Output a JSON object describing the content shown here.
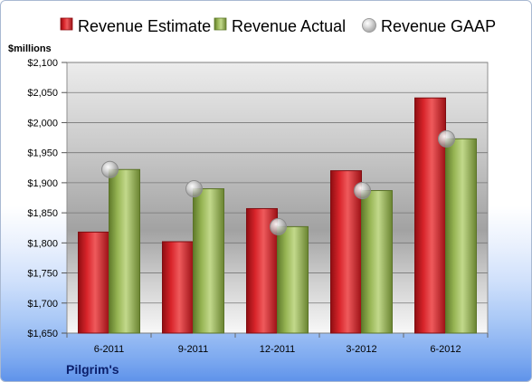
{
  "chart_data": {
    "type": "bar",
    "unit_label": "$millions",
    "company": "Pilgrim's",
    "categories": [
      "6-2011",
      "9-2011",
      "12-2011",
      "3-2012",
      "6-2012"
    ],
    "series": [
      {
        "name": "Revenue Estimate",
        "kind": "bar",
        "color": "#d11f24",
        "values": [
          1818,
          1802,
          1857,
          1920,
          2041
        ]
      },
      {
        "name": "Revenue Actual",
        "kind": "bar",
        "color": "#8eab48",
        "values": [
          1922,
          1890,
          1827,
          1887,
          1973
        ]
      },
      {
        "name": "Revenue GAAP",
        "kind": "marker",
        "color": "#b9b9b9",
        "values": [
          1922,
          1890,
          1827,
          1887,
          1973
        ]
      }
    ],
    "ylim": [
      1650,
      2100
    ],
    "yticks": [
      1650,
      1700,
      1750,
      1800,
      1850,
      1900,
      1950,
      2000,
      2050,
      2100
    ],
    "ytick_labels": [
      "$1,650",
      "$1,700",
      "$1,750",
      "$1,800",
      "$1,850",
      "$1,900",
      "$1,950",
      "$2,000",
      "$2,050",
      "$2,100"
    ],
    "grid": true,
    "legend_position": "top"
  }
}
